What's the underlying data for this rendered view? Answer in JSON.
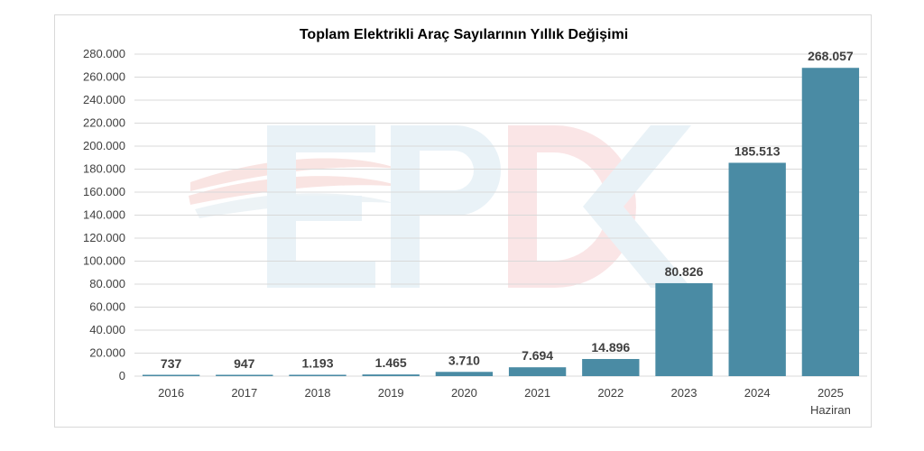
{
  "chart_data": {
    "type": "bar",
    "title": "Toplam Elektrikli Araç Sayılarının Yıllık Değişimi",
    "categories": [
      "2016",
      "2017",
      "2018",
      "2019",
      "2020",
      "2021",
      "2022",
      "2023",
      "2024",
      "2025"
    ],
    "category_sublabels": [
      "",
      "",
      "",
      "",
      "",
      "",
      "",
      "",
      "",
      "Haziran"
    ],
    "values": [
      737,
      947,
      1193,
      1465,
      3710,
      7694,
      14896,
      80826,
      185513,
      268057
    ],
    "value_labels": [
      "737",
      "947",
      "1.193",
      "1.465",
      "3.710",
      "7.694",
      "14.896",
      "80.826",
      "185.513",
      "268.057"
    ],
    "ylim": [
      0,
      280000
    ],
    "yticks": [
      0,
      20000,
      40000,
      60000,
      80000,
      100000,
      120000,
      140000,
      160000,
      180000,
      200000,
      220000,
      240000,
      260000,
      280000
    ],
    "ytick_labels": [
      "0",
      "20.000",
      "40.000",
      "60.000",
      "80.000",
      "100.000",
      "120.000",
      "140.000",
      "160.000",
      "180.000",
      "200.000",
      "220.000",
      "240.000",
      "260.000",
      "280.000"
    ],
    "grid": true,
    "legend": "none",
    "bar_color": "#4a8ba4",
    "watermark": "EPDK"
  }
}
